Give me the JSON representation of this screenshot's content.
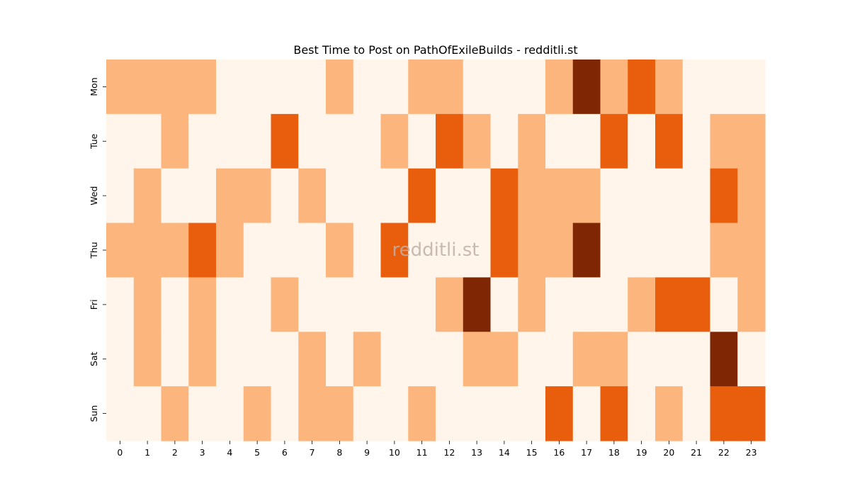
{
  "chart_data": {
    "type": "heatmap",
    "title": "Best Time to Post on PathOfExileBuilds - redditli.st",
    "xlabel": "",
    "ylabel": "",
    "x": [
      "0",
      "1",
      "2",
      "3",
      "4",
      "5",
      "6",
      "7",
      "8",
      "9",
      "10",
      "11",
      "12",
      "13",
      "14",
      "15",
      "16",
      "17",
      "18",
      "19",
      "20",
      "21",
      "22",
      "23"
    ],
    "y": [
      "Mon",
      "Tue",
      "Wed",
      "Thu",
      "Fri",
      "Sat",
      "Sun"
    ],
    "values": [
      [
        1,
        1,
        1,
        1,
        0,
        0,
        0,
        0,
        1,
        0,
        0,
        1,
        1,
        0,
        0,
        0,
        1,
        3,
        1,
        2,
        1,
        0,
        0,
        0
      ],
      [
        0,
        0,
        1,
        0,
        0,
        0,
        2,
        0,
        0,
        0,
        1,
        0,
        2,
        1,
        0,
        1,
        0,
        0,
        2,
        0,
        2,
        0,
        1,
        1
      ],
      [
        0,
        1,
        0,
        0,
        1,
        1,
        0,
        1,
        0,
        0,
        0,
        2,
        0,
        0,
        2,
        1,
        1,
        1,
        0,
        0,
        0,
        0,
        2,
        1
      ],
      [
        1,
        1,
        1,
        2,
        1,
        0,
        0,
        0,
        1,
        0,
        2,
        0,
        0,
        0,
        2,
        1,
        1,
        3,
        0,
        0,
        0,
        0,
        1,
        1
      ],
      [
        0,
        1,
        0,
        1,
        0,
        0,
        1,
        0,
        0,
        0,
        0,
        0,
        1,
        3,
        0,
        1,
        0,
        0,
        0,
        1,
        2,
        2,
        0,
        1
      ],
      [
        0,
        1,
        0,
        1,
        0,
        0,
        0,
        1,
        0,
        1,
        0,
        0,
        0,
        1,
        1,
        0,
        0,
        1,
        1,
        0,
        0,
        0,
        3,
        0
      ],
      [
        0,
        0,
        1,
        0,
        0,
        1,
        0,
        1,
        1,
        0,
        0,
        1,
        0,
        0,
        0,
        0,
        2,
        0,
        2,
        0,
        1,
        0,
        2,
        2
      ]
    ],
    "colorscale": [
      "#fff5eb",
      "#fdb57e",
      "#e95e0d",
      "#7f2704"
    ],
    "grid": false,
    "legend": "none",
    "watermark": "redditli.st"
  }
}
